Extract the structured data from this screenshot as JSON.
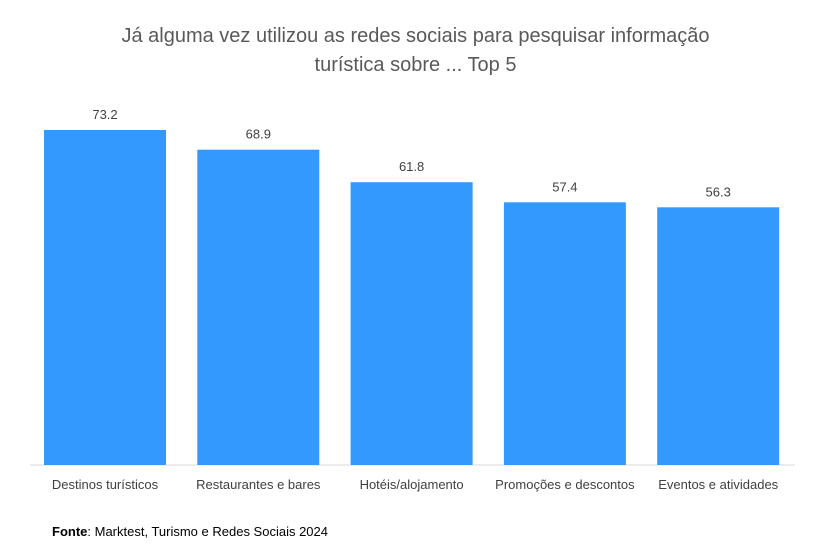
{
  "chart_data": {
    "type": "bar",
    "title_lines": [
      "Já alguma vez utilizou as redes sociais para pesquisar informação",
      "turística sobre ... Top 5"
    ],
    "categories": [
      "Destinos turísticos",
      "Restaurantes e bares",
      "Hotéis/alojamento",
      "Promoções e descontos",
      "Eventos e atividades"
    ],
    "values": [
      73.2,
      68.9,
      61.8,
      57.4,
      56.3
    ],
    "value_labels": [
      "73.2",
      "68.9",
      "61.8",
      "57.4",
      "56.3"
    ],
    "xlabel": "",
    "ylabel": "",
    "ylim": [
      0,
      80
    ],
    "grid": false,
    "legend": "none",
    "bar_color": "#3399FF"
  },
  "source": {
    "label": "Fonte",
    "text": ": Marktest, Turismo e Redes Sociais 2024"
  }
}
